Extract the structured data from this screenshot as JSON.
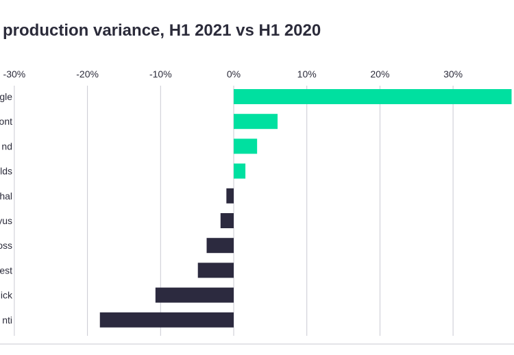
{
  "chart_data": {
    "type": "bar",
    "orientation": "horizontal",
    "title": "production variance, H1 2021 vs H1 2020",
    "xlabel": "",
    "ylabel": "",
    "xlim": [
      -30,
      38
    ],
    "tick_values": [
      -30,
      -20,
      -10,
      0,
      10,
      20,
      30
    ],
    "tick_labels": [
      "-30%",
      "-20%",
      "-10%",
      "0%",
      "10%",
      "20%",
      "30%"
    ],
    "categories": [
      "gle",
      "ont",
      "nd",
      "lds",
      "hal",
      "yus",
      "oss",
      "est",
      "ick",
      "nti"
    ],
    "values": [
      38,
      6,
      3.2,
      1.6,
      -1,
      -1.8,
      -3.7,
      -4.9,
      -10.7,
      -18.3
    ],
    "grid": true,
    "colors": {
      "positive": "#00e0a0",
      "negative": "#2c2a3f",
      "grid": "#c9c9d2",
      "text": "#2b2b3a"
    }
  }
}
